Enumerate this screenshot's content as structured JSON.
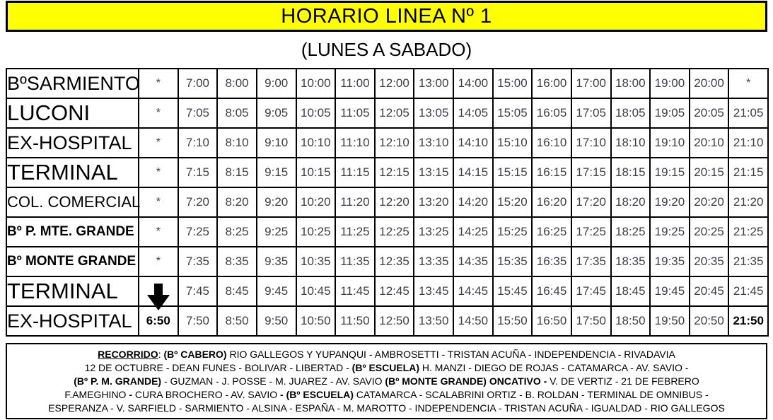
{
  "header": {
    "title": "HORARIO LINEA Nº 1",
    "subtitle": "(LUNES A SABADO)"
  },
  "colors": {
    "banner_bg": "#FFFF00",
    "border": "#000000",
    "time_text": "#3D3D46"
  },
  "schedule": {
    "rows": [
      {
        "station": "BºSARMIENTO",
        "style": "lg",
        "cells": [
          "*",
          "7:00",
          "8:00",
          "9:00",
          "10:00",
          "11:00",
          "12:00",
          "13:00",
          "14:00",
          "15:00",
          "16:00",
          "17:00",
          "18:00",
          "19:00",
          "20:00",
          "*"
        ]
      },
      {
        "station": "LUCONI",
        "style": "xl",
        "cells": [
          "*",
          "7:05",
          "8:05",
          "9:05",
          "10:05",
          "11:05",
          "12:05",
          "13:05",
          "14:05",
          "15:05",
          "16:05",
          "17:05",
          "18:05",
          "19:05",
          "20:05",
          "21:05"
        ]
      },
      {
        "station": "EX-HOSPITAL",
        "style": "lg",
        "cells": [
          "*",
          "7:10",
          "8:10",
          "9:10",
          "10:10",
          "11:10",
          "12:10",
          "13:10",
          "14:10",
          "15:10",
          "16:10",
          "17:10",
          "18:10",
          "19:10",
          "20:10",
          "21:10"
        ]
      },
      {
        "station": "TERMINAL",
        "style": "xl",
        "cells": [
          "*",
          "7:15",
          "8:15",
          "9:15",
          "10:15",
          "11:15",
          "12:15",
          "13:15",
          "14:15",
          "15:15",
          "16:15",
          "17:15",
          "18:15",
          "19:15",
          "20:15",
          "21:15"
        ]
      },
      {
        "station": "COL. COMERCIAL",
        "style": "md",
        "cells": [
          "*",
          "7:20",
          "8:20",
          "9:20",
          "10:20",
          "11:20",
          "12:20",
          "13:20",
          "14:20",
          "15:20",
          "16:20",
          "17:20",
          "18:20",
          "19:20",
          "20:20",
          "21:20"
        ]
      },
      {
        "station": "Bº P. MTE. GRANDE",
        "style": "sm-bold",
        "cells": [
          "*",
          "7:25",
          "8:25",
          "9:25",
          "10:25",
          "11:25",
          "12:25",
          "13:25",
          "14:25",
          "15:25",
          "16:25",
          "17:25",
          "18:25",
          "19:25",
          "20:25",
          "21:25"
        ]
      },
      {
        "station": "Bº MONTE GRANDE",
        "style": "sm-bold",
        "cells": [
          "*",
          "7:35",
          "8:35",
          "9:35",
          "10:35",
          "11:35",
          "12:35",
          "13:35",
          "14:35",
          "15:35",
          "16:35",
          "17:35",
          "18:35",
          "19:35",
          "20:35",
          "21:35"
        ]
      },
      {
        "station": "TERMINAL",
        "style": "xl",
        "cells": [
          {
            "icon": "down-arrow"
          },
          "7:45",
          "8:45",
          "9:45",
          "10:45",
          "11:45",
          "12:45",
          "13:45",
          "14:45",
          "15:45",
          "16:45",
          "17:45",
          "18:45",
          "19:45",
          "20:45",
          "21:45"
        ]
      },
      {
        "station": "EX-HOSPITAL",
        "style": "lg",
        "cells": [
          {
            "t": "6:50",
            "bold": true
          },
          "7:50",
          "8:50",
          "9:50",
          "10:50",
          "11:50",
          "12:50",
          "13:50",
          "14:50",
          "15:50",
          "16:50",
          "17:50",
          "18:50",
          "19:50",
          "20:50",
          {
            "t": "21:50",
            "bold": true
          }
        ]
      }
    ]
  },
  "recorrido": {
    "lines": [
      [
        {
          "t": "RECORRIDO",
          "bold": true,
          "underline": true
        },
        {
          "t": ": "
        },
        {
          "t": "(Bº CABERO)",
          "bold": true
        },
        {
          "t": " RIO GALLEGOS Y YUPANQUI - AMBROSETTI - TRISTAN ACUÑA - INDEPENDENCIA - RIVADAVIA"
        }
      ],
      [
        {
          "t": "12 DE OCTUBRE - DEAN FUNES - BOLIVAR - LIBERTAD - "
        },
        {
          "t": "(Bº ESCUELA)",
          "bold": true
        },
        {
          "t": " H. MANZI - DIEGO DE ROJAS - CATAMARCA - AV. SAVIO -"
        }
      ],
      [
        {
          "t": "(Bº P. M. GRANDE)",
          "bold": true
        },
        {
          "t": " - GUZMAN - J. POSSE - M. JUAREZ - AV. SAVIO "
        },
        {
          "t": "(Bº MONTE GRANDE) ONCATIVO -",
          "bold": true
        },
        {
          "t": "  V. DE VERTIZ - 21 DE FEBRERO"
        }
      ],
      [
        {
          "t": "F.AMEGHINO "
        },
        {
          "t": "-",
          "bold": true
        },
        {
          "t": " CURA BROCHERO - AV. SAVIO "
        },
        {
          "t": "- (Bº ESCUELA)",
          "bold": true
        },
        {
          "t": " CATAMARCA - SCALABRINI ORTIZ - B. ROLDAN - TERMINAL DE OMNIBUS -"
        }
      ],
      [
        {
          "t": "ESPERANZA - V. SARFIELD - SARMIENTO - ALSINA - ESPAÑA - M. MAROTTO - INDEPENDENCIA - TRISTAN ACUÑA - IGUALDAD - RIO GALLEGOS"
        }
      ]
    ]
  }
}
